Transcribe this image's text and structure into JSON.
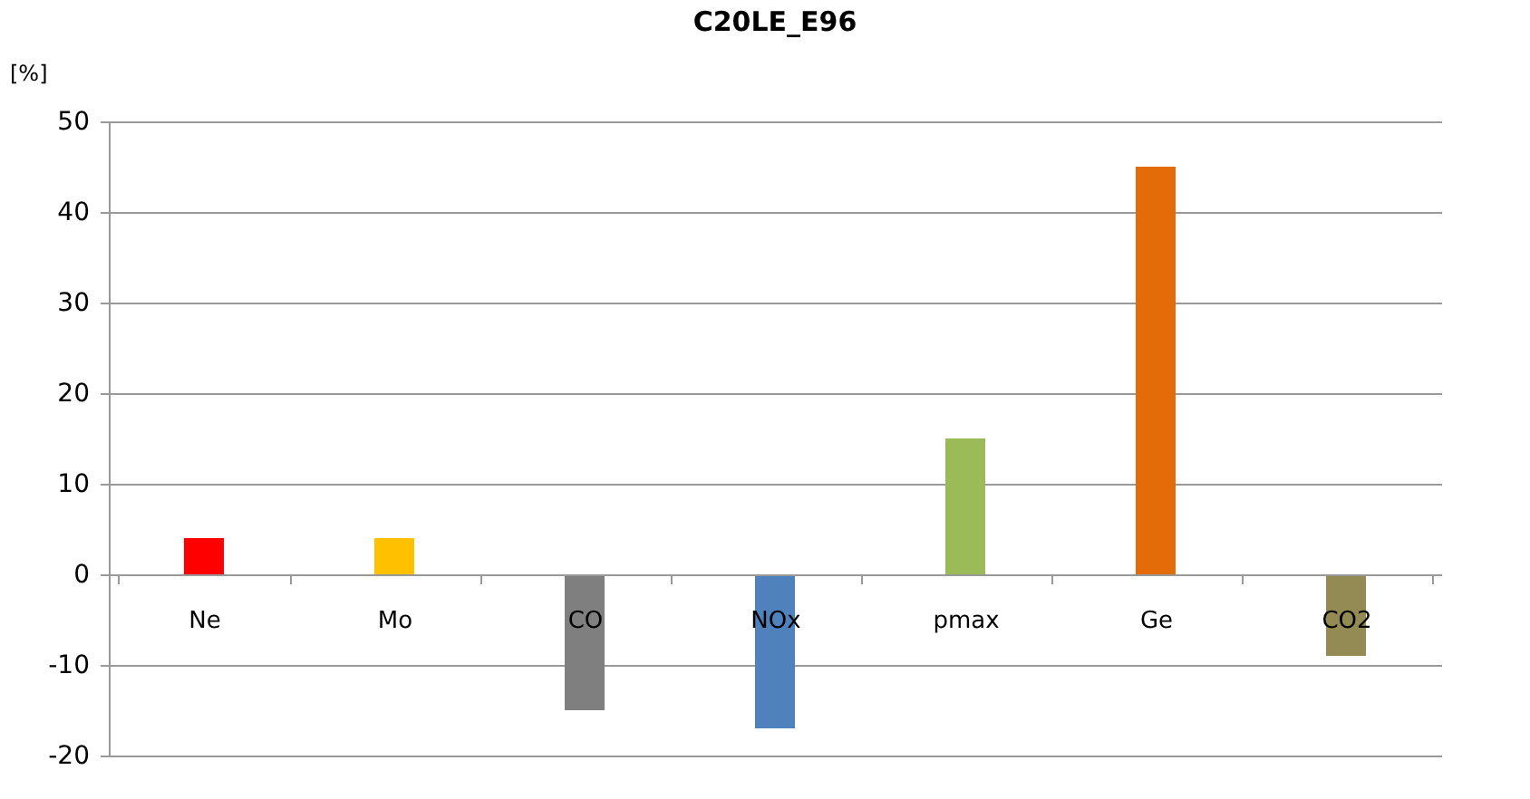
{
  "chart_data": {
    "type": "bar",
    "title": "C20LE_E96",
    "ylabel": "[%]",
    "categories": [
      "Ne",
      "Mo",
      "CO",
      "NOx",
      "pmax",
      "Ge",
      "CO2"
    ],
    "values": [
      4,
      4,
      -15,
      -17,
      15,
      45,
      -9
    ],
    "colors": [
      "#ff0000",
      "#ffc000",
      "#7f7f7f",
      "#4f81bd",
      "#9bbb59",
      "#e36c09",
      "#948a54"
    ],
    "ylim": [
      -20,
      50
    ],
    "yticks": [
      -20,
      -10,
      0,
      10,
      20,
      30,
      40,
      50
    ],
    "grid": "y"
  }
}
